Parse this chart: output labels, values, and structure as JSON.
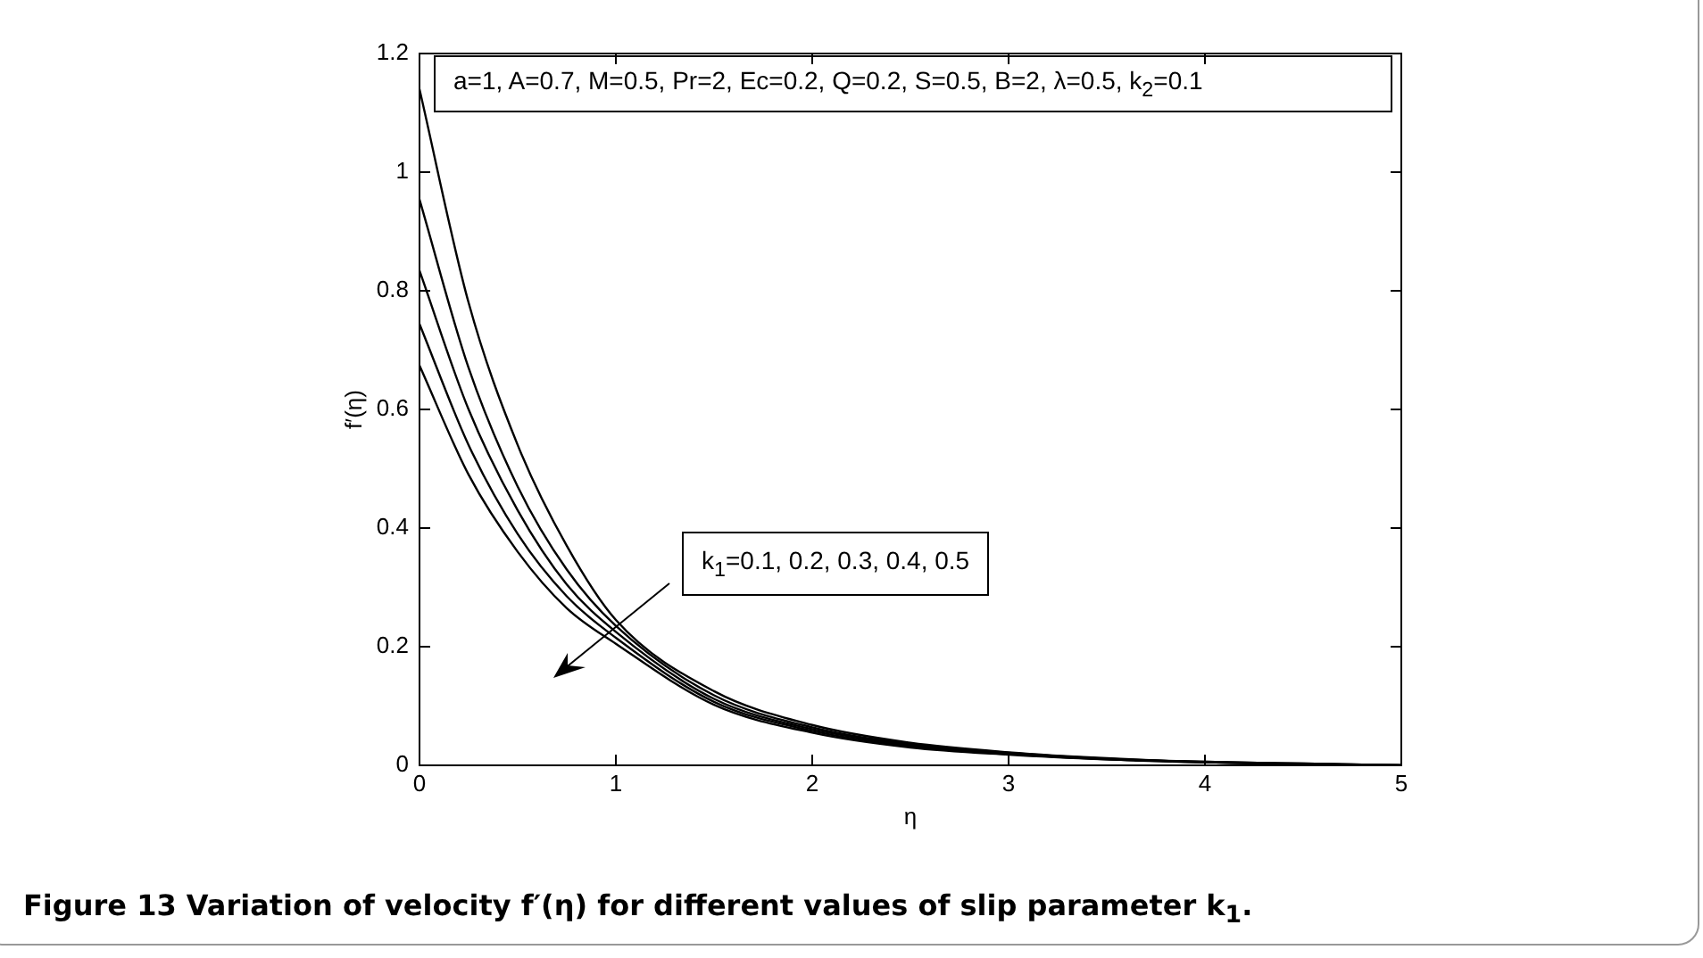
{
  "chart_data": {
    "type": "line",
    "xlabel": "η",
    "ylabel": "f′(η)",
    "x": [
      0,
      0.25,
      0.5,
      0.75,
      1,
      1.5,
      2,
      2.5,
      3,
      3.5,
      4,
      4.5,
      5
    ],
    "series": [
      {
        "color": "#000000",
        "values": [
          1.14,
          0.78,
          0.54,
          0.37,
          0.245,
          0.125,
          0.068,
          0.038,
          0.022,
          0.012,
          0.006,
          0.003,
          0
        ]
      },
      {
        "color": "#000000",
        "values": [
          0.954,
          0.67,
          0.47,
          0.33,
          0.235,
          0.118,
          0.064,
          0.036,
          0.021,
          0.011,
          0.006,
          0.003,
          0
        ]
      },
      {
        "color": "#000000",
        "values": [
          0.834,
          0.6,
          0.43,
          0.305,
          0.225,
          0.112,
          0.061,
          0.034,
          0.02,
          0.011,
          0.005,
          0.002,
          0
        ]
      },
      {
        "color": "#000000",
        "values": [
          0.744,
          0.54,
          0.39,
          0.285,
          0.215,
          0.107,
          0.058,
          0.032,
          0.019,
          0.01,
          0.005,
          0.002,
          0
        ]
      },
      {
        "color": "#000000",
        "values": [
          0.674,
          0.49,
          0.36,
          0.265,
          0.205,
          0.102,
          0.055,
          0.03,
          0.018,
          0.01,
          0.005,
          0.002,
          0
        ]
      }
    ],
    "xlim": [
      0,
      5
    ],
    "xticks": [
      0,
      1,
      2,
      3,
      4,
      5
    ],
    "ylim": [
      0,
      1.2
    ],
    "yticks": [
      0,
      0.2,
      0.4,
      0.6,
      0.8,
      1,
      1.2
    ],
    "grid": false,
    "legend": false,
    "marker": "none",
    "line_style": "solid",
    "annotations": [
      "a=1, A=0.7, M=0.5, Pr=2, Ec=0.2, Q=0.2, S=0.5, B=2, λ=0.5, k$_{2}$=0.1",
      "k$_{1}$=0.1, 0.2, 0.3, 0.4, 0.5",
      "Figure 13  Variation of velocity f′(η) for different values of slip parameter k$_{1}$."
    ]
  }
}
